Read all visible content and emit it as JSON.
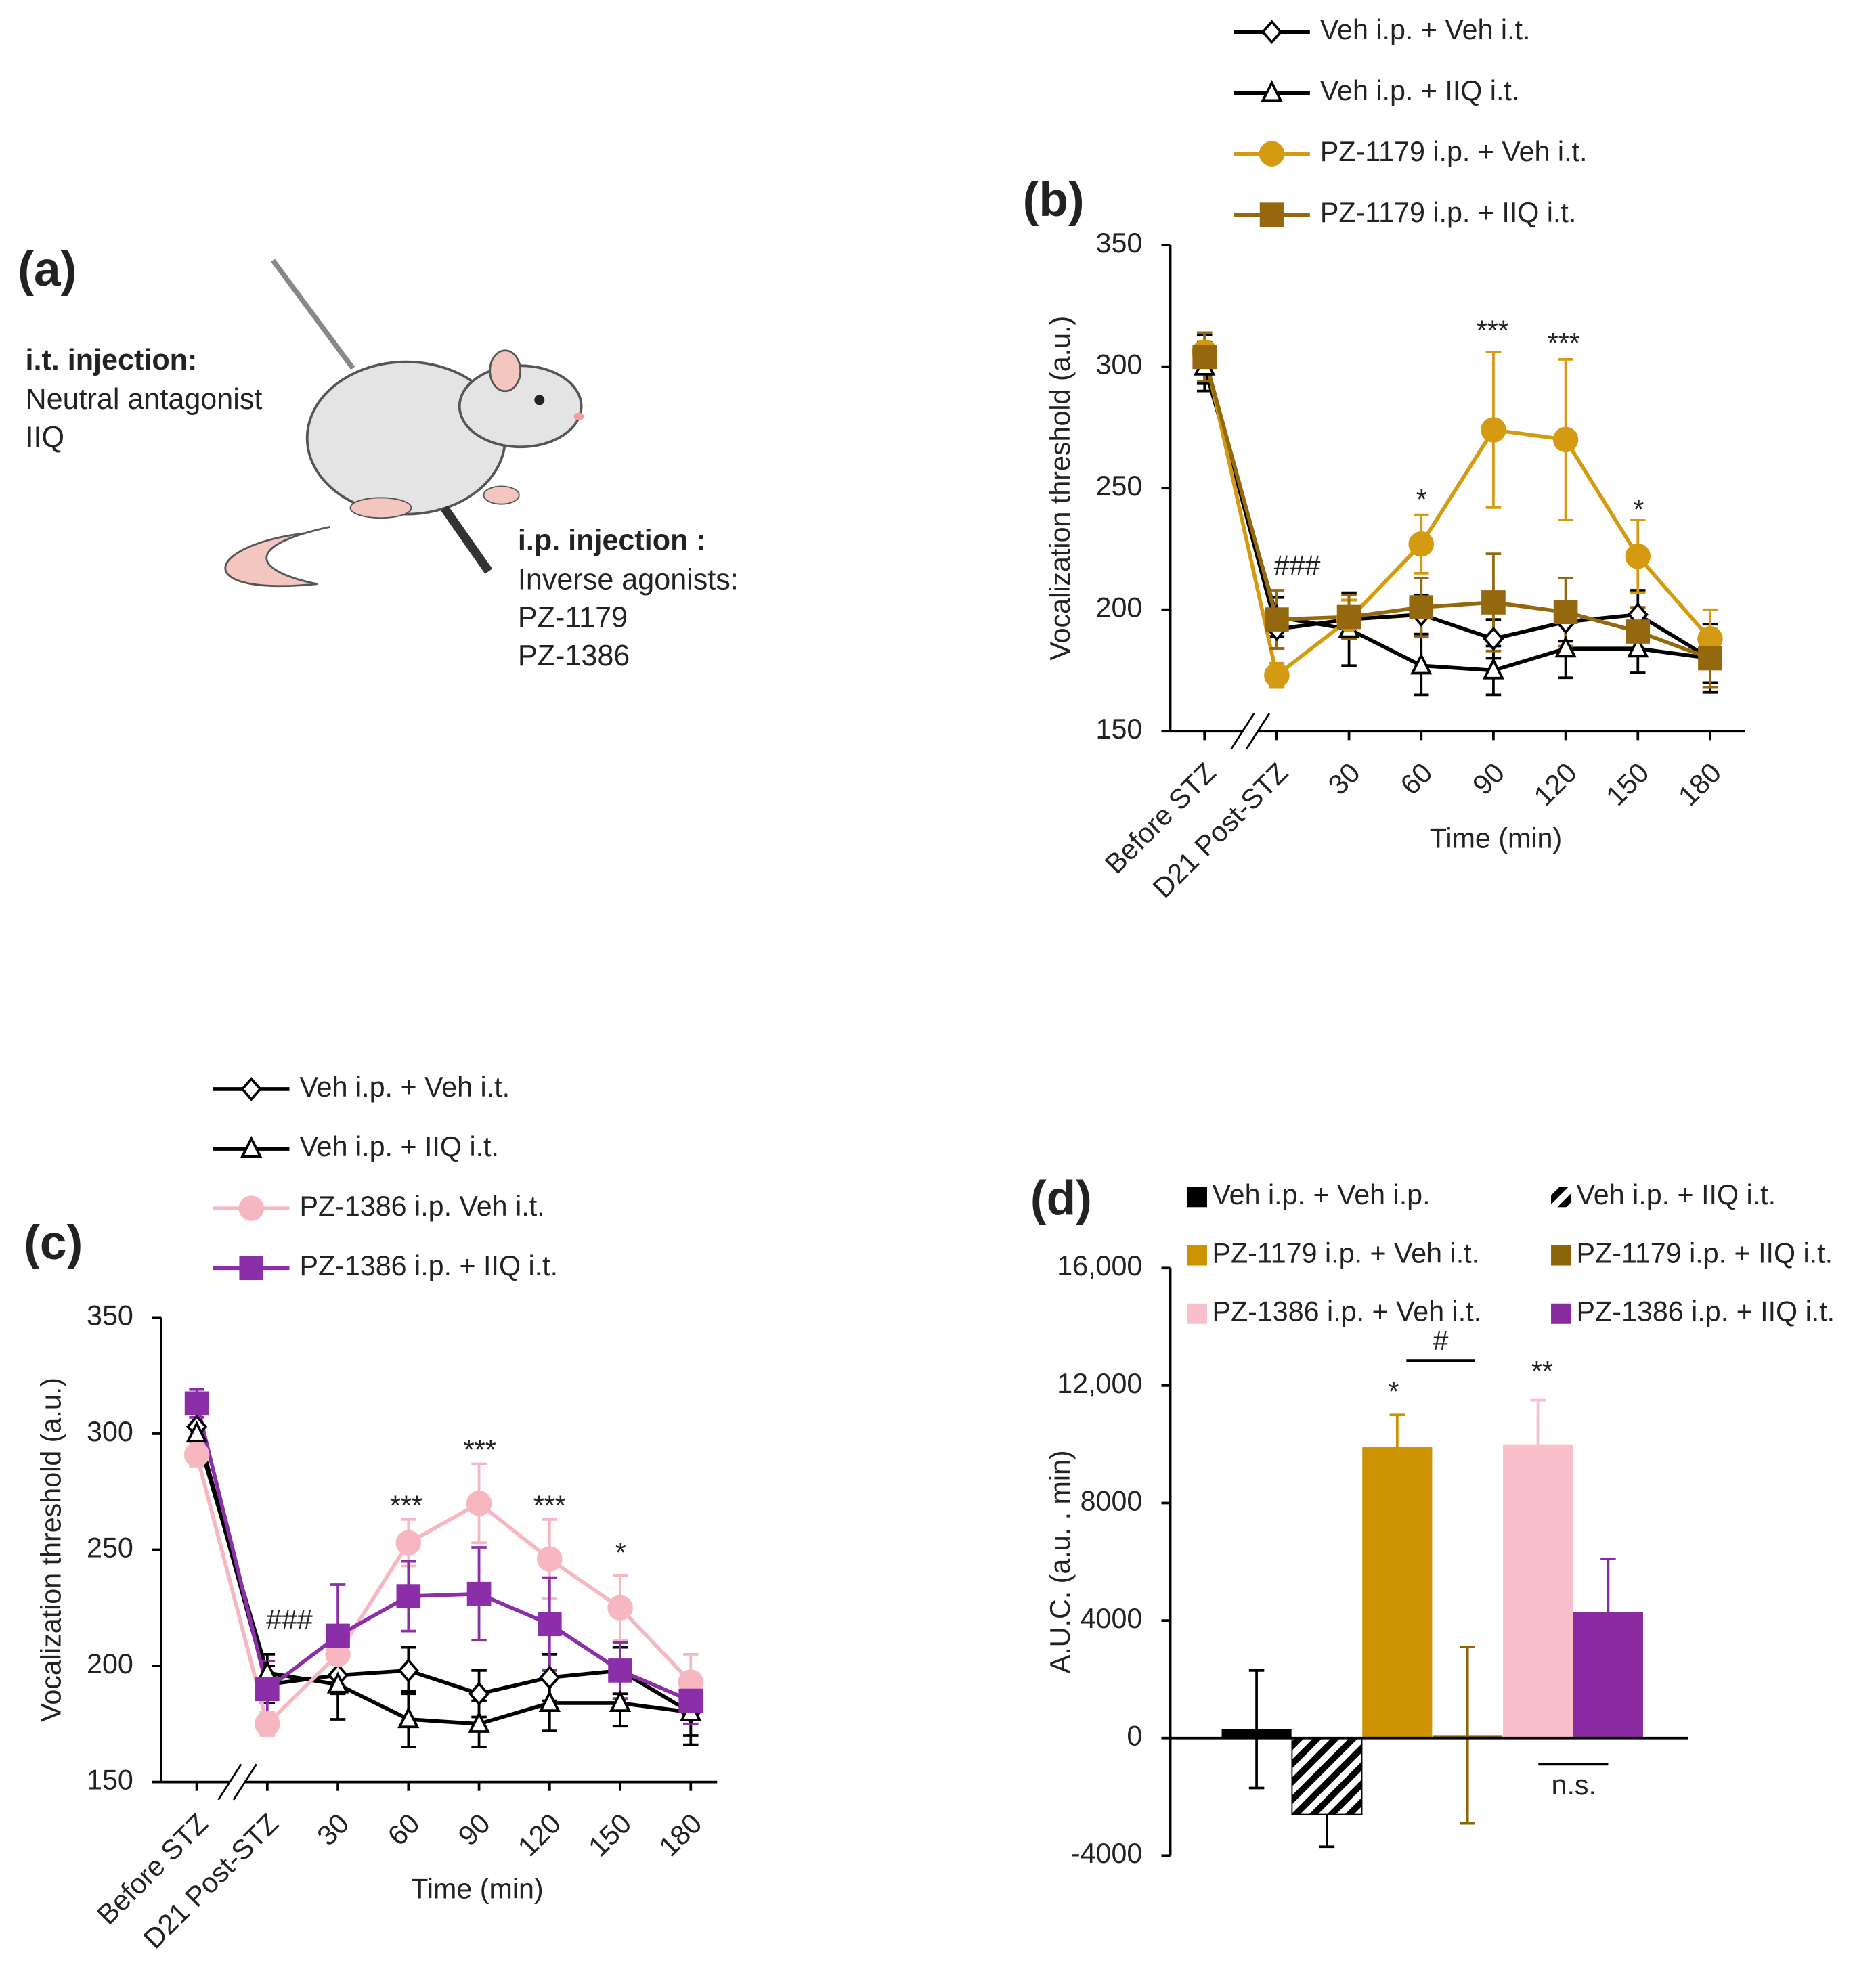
{
  "panel_a": {
    "label": "(a)",
    "it_title": "i.t. injection:",
    "it_lines": [
      "Neutral antagonist",
      "IIQ"
    ],
    "ip_title": "i.p. injection :",
    "ip_lines": [
      "Inverse agonists:",
      "PZ-1179",
      "PZ-1386"
    ]
  },
  "chart_data": [
    {
      "type": "line",
      "panel_label": "(b)",
      "x_label": "Time (min)",
      "y_label": "Vocalization threshold (a.u.)",
      "categories": [
        "Before STZ",
        "D21 Post-STZ",
        "30",
        "60",
        "90",
        "120",
        "150",
        "180"
      ],
      "ylim": [
        150,
        350
      ],
      "yticks": [
        150,
        200,
        250,
        300,
        350
      ],
      "series": [
        {
          "name": "Veh i.p. + Veh i.t.",
          "color": "#000000",
          "marker": "diamond",
          "marker_fill": "#ffffff",
          "values": [
            303,
            192,
            196,
            198,
            188,
            195,
            198,
            180
          ],
          "errors": [
            10,
            8,
            8,
            8,
            8,
            8,
            10,
            10
          ]
        },
        {
          "name": "Veh i.p. + IIQ i.t.",
          "color": "#000000",
          "marker": "triangle",
          "marker_fill": "#ffffff",
          "values": [
            300,
            197,
            192,
            177,
            175,
            184,
            184,
            180
          ],
          "errors": [
            10,
            8,
            15,
            12,
            10,
            12,
            10,
            14
          ]
        },
        {
          "name": "PZ-1179 i.p. +  Veh i.t.",
          "color": "#d49b12",
          "marker": "circle",
          "marker_fill": "#d49b12",
          "values": [
            306,
            173,
            196,
            227,
            274,
            270,
            222,
            188
          ],
          "errors": [
            8,
            5,
            8,
            12,
            32,
            33,
            15,
            12
          ]
        },
        {
          "name": "PZ-1179 i.p. +  IIQ i.t.",
          "color": "#94680e",
          "marker": "square",
          "marker_fill": "#94680e",
          "values": [
            304,
            196,
            197,
            201,
            203,
            199,
            191,
            180
          ],
          "errors": [
            10,
            12,
            9,
            12,
            20,
            14,
            10,
            12
          ]
        }
      ],
      "annotations": [
        "###",
        "*",
        "***",
        "***",
        "*"
      ]
    },
    {
      "type": "line",
      "panel_label": "(c)",
      "x_label": "Time (min)",
      "y_label": "Vocalization threshold (a.u.)",
      "categories": [
        "Before STZ",
        "D21 Post-STZ",
        "30",
        "60",
        "90",
        "120",
        "150",
        "180"
      ],
      "ylim": [
        150,
        350
      ],
      "yticks": [
        150,
        200,
        250,
        300,
        350
      ],
      "series": [
        {
          "name": "Veh i.p. + Veh i.t.",
          "color": "#000000",
          "marker": "diamond",
          "marker_fill": "#ffffff",
          "values": [
            303,
            192,
            196,
            198,
            188,
            195,
            198,
            180
          ],
          "errors": [
            10,
            8,
            8,
            10,
            10,
            10,
            10,
            10
          ]
        },
        {
          "name": "Veh i.p. + IIQ i.t.",
          "color": "#000000",
          "marker": "triangle",
          "marker_fill": "#ffffff",
          "values": [
            300,
            197,
            192,
            177,
            175,
            184,
            184,
            180
          ],
          "errors": [
            10,
            8,
            15,
            12,
            10,
            12,
            10,
            14
          ]
        },
        {
          "name": "PZ-1386 i.p. Veh i.t.",
          "color": "#f7b7c0",
          "marker": "circle",
          "marker_fill": "#f7b7c0",
          "values": [
            291,
            175,
            205,
            253,
            270,
            246,
            225,
            193
          ],
          "errors": [
            5,
            5,
            8,
            10,
            17,
            17,
            14,
            12
          ]
        },
        {
          "name": "PZ-1386 i.p. + IIQ i.t.",
          "color": "#8b2fa8",
          "marker": "square",
          "marker_fill": "#8b2fa8",
          "values": [
            313,
            190,
            213,
            230,
            231,
            218,
            198,
            185
          ],
          "errors": [
            6,
            12,
            22,
            15,
            20,
            20,
            12,
            10
          ]
        }
      ],
      "annotations": [
        "###",
        "***",
        "***",
        "***",
        "*"
      ]
    },
    {
      "type": "bar",
      "panel_label": "(d)",
      "y_label": "A.U.C. (a.u. . min)",
      "ylim": [
        -4000,
        16000
      ],
      "yticks": [
        -4000,
        0,
        4000,
        8000,
        {
          "value": 12000,
          "label": "12,000"
        },
        {
          "value": 16000,
          "label": "16,000"
        }
      ],
      "series": [
        {
          "name": "Veh i.p. + Veh i.p.",
          "color": "#000000",
          "values": [
            300
          ],
          "errors": [
            2000
          ]
        },
        {
          "name": "Veh i.p. + IIQ i.t.",
          "color": "#000000",
          "hatch": true,
          "values": [
            -2600
          ],
          "errors": [
            1100
          ]
        },
        {
          "name": "PZ-1179 i.p. + Veh i.t.",
          "color": "#cc9200",
          "values": [
            9900
          ],
          "errors": [
            1100
          ]
        },
        {
          "name": "PZ-1179 i.p. + IIQ i.t.",
          "color": "#8b6508",
          "values": [
            100
          ],
          "errors": [
            3000
          ]
        },
        {
          "name": "PZ-1386 i.p. + Veh i.t.",
          "color": "#f9c0cb",
          "values": [
            10000
          ],
          "errors": [
            1500
          ]
        },
        {
          "name": "PZ-1386 i.p. + IIQ i.t.",
          "color": "#8a2aa0",
          "values": [
            4300
          ],
          "errors": [
            1800
          ]
        }
      ],
      "annotations": [
        "*",
        "#",
        "**",
        "n.s."
      ]
    }
  ]
}
